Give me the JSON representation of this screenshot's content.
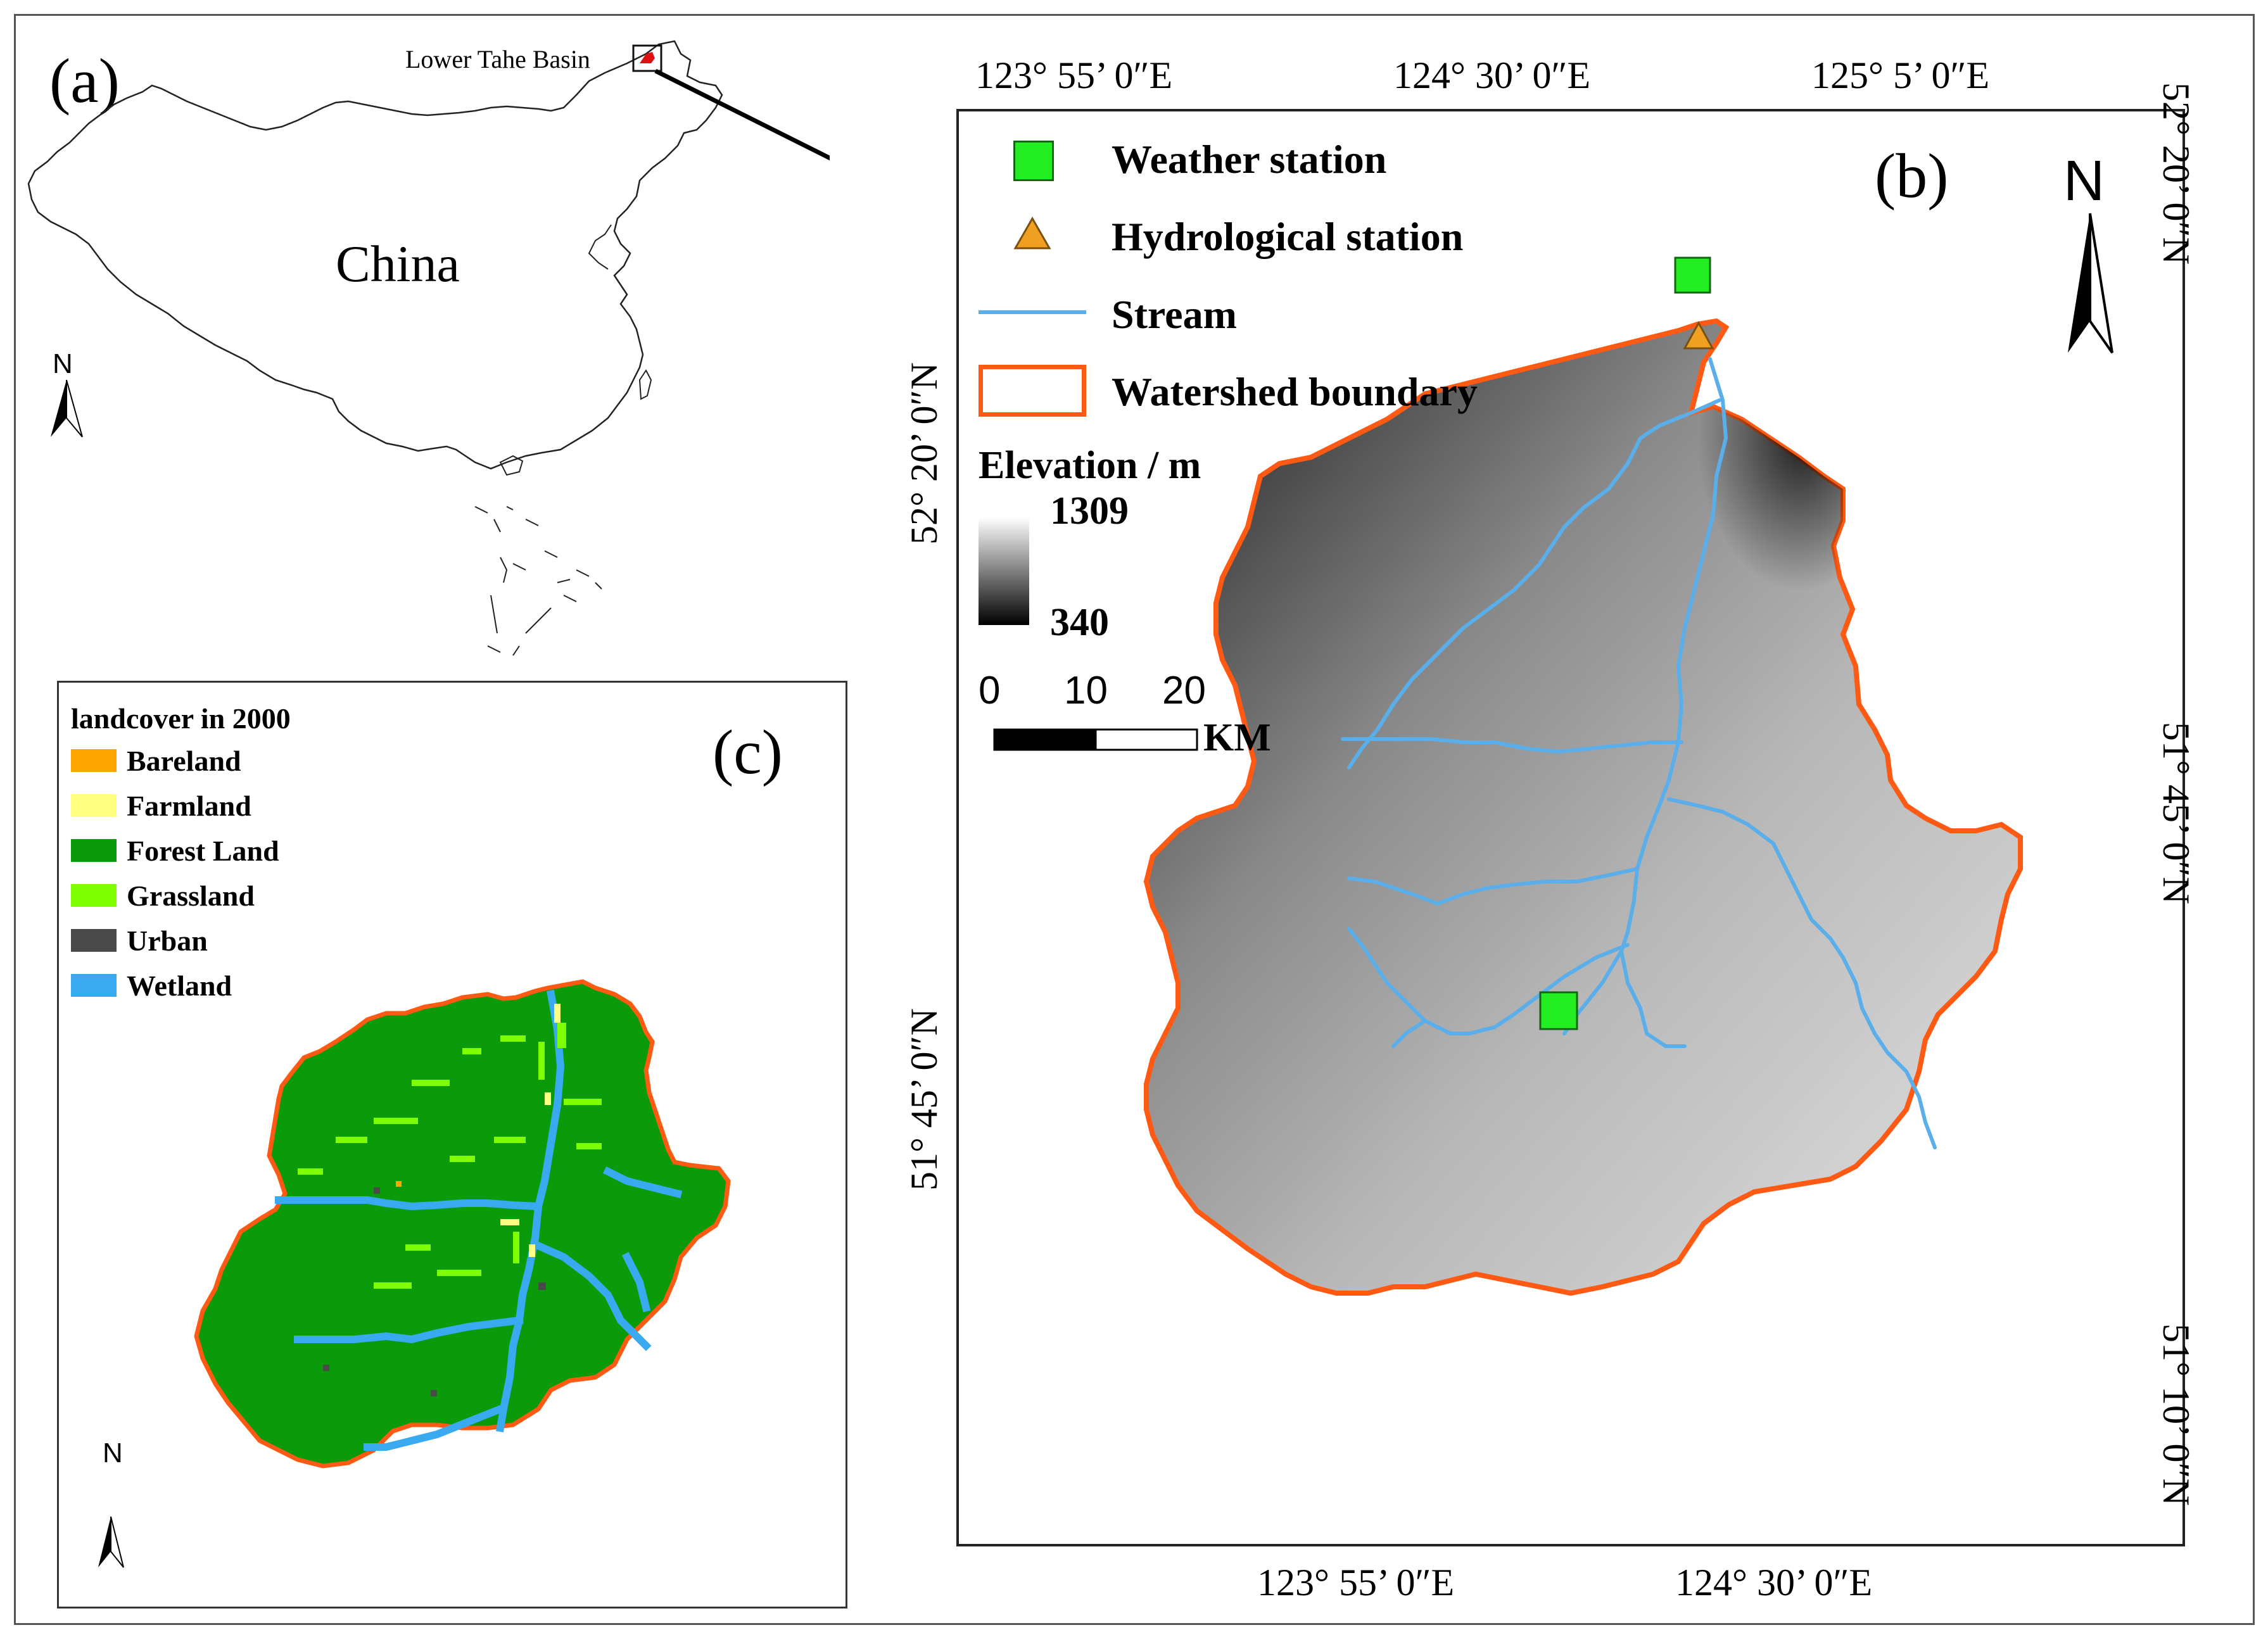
{
  "panel_a": {
    "label": "(a)",
    "country_name": "China",
    "inset_label": "Lower Tahe Basin",
    "north_label": "N",
    "icons": {
      "north_arrow": "north-arrow-icon",
      "locator_arrow": "arrow-icon"
    }
  },
  "panel_b": {
    "label": "(b)",
    "north_label": "N",
    "legend": [
      {
        "label": "Weather station",
        "symbol": "green-square",
        "color": "#22ee22"
      },
      {
        "label": "Hydrological station",
        "symbol": "orange-triangle",
        "color": "#f0a020"
      },
      {
        "label": "Stream",
        "symbol": "blue-line",
        "color": "#5aaeea"
      },
      {
        "label": "Watershed boundary",
        "symbol": "orange-rectangle",
        "color": "#ff5a14"
      }
    ],
    "elevation": {
      "title": "Elevation / m",
      "max_label": "1309",
      "min_label": "340",
      "max": 1309,
      "min": 340
    },
    "scalebar": {
      "ticks": [
        "0",
        "10",
        "20"
      ],
      "unit": "KM"
    },
    "top_lon_labels": [
      "123°  55’ 0″E",
      "124°  30’ 0″E",
      "125°  5’ 0″E"
    ],
    "bottom_lon_labels": [
      "123°  55’ 0″E",
      "124°  30’ 0″E"
    ],
    "left_lat_labels": [
      "52°  20’ 0″N",
      "51°  45’ 0″N"
    ],
    "right_lat_labels": [
      "52°  20’ 0″N",
      "51°  45’ 0″N",
      "51°  10’ 0″N"
    ]
  },
  "panel_c": {
    "label": "(c)",
    "legend_title": "landcover in 2000",
    "north_label": "N",
    "legend": [
      {
        "label": "Bareland",
        "color": "#ffa500"
      },
      {
        "label": "Farmland",
        "color": "#ffff80"
      },
      {
        "label": "Forest Land",
        "color": "#0a9a0a"
      },
      {
        "label": "Grassland",
        "color": "#80ff00"
      },
      {
        "label": "Urban",
        "color": "#4a4a4a"
      },
      {
        "label": "Wetland",
        "color": "#3aaaf0"
      }
    ]
  },
  "colors": {
    "boundary": "#ff5a14",
    "stream": "#5aaeea",
    "forest": "#0a9a0a",
    "wetland": "#3aaaf0",
    "grassland": "#80ff00",
    "station": "#22ee22",
    "hydro": "#f0a020"
  }
}
